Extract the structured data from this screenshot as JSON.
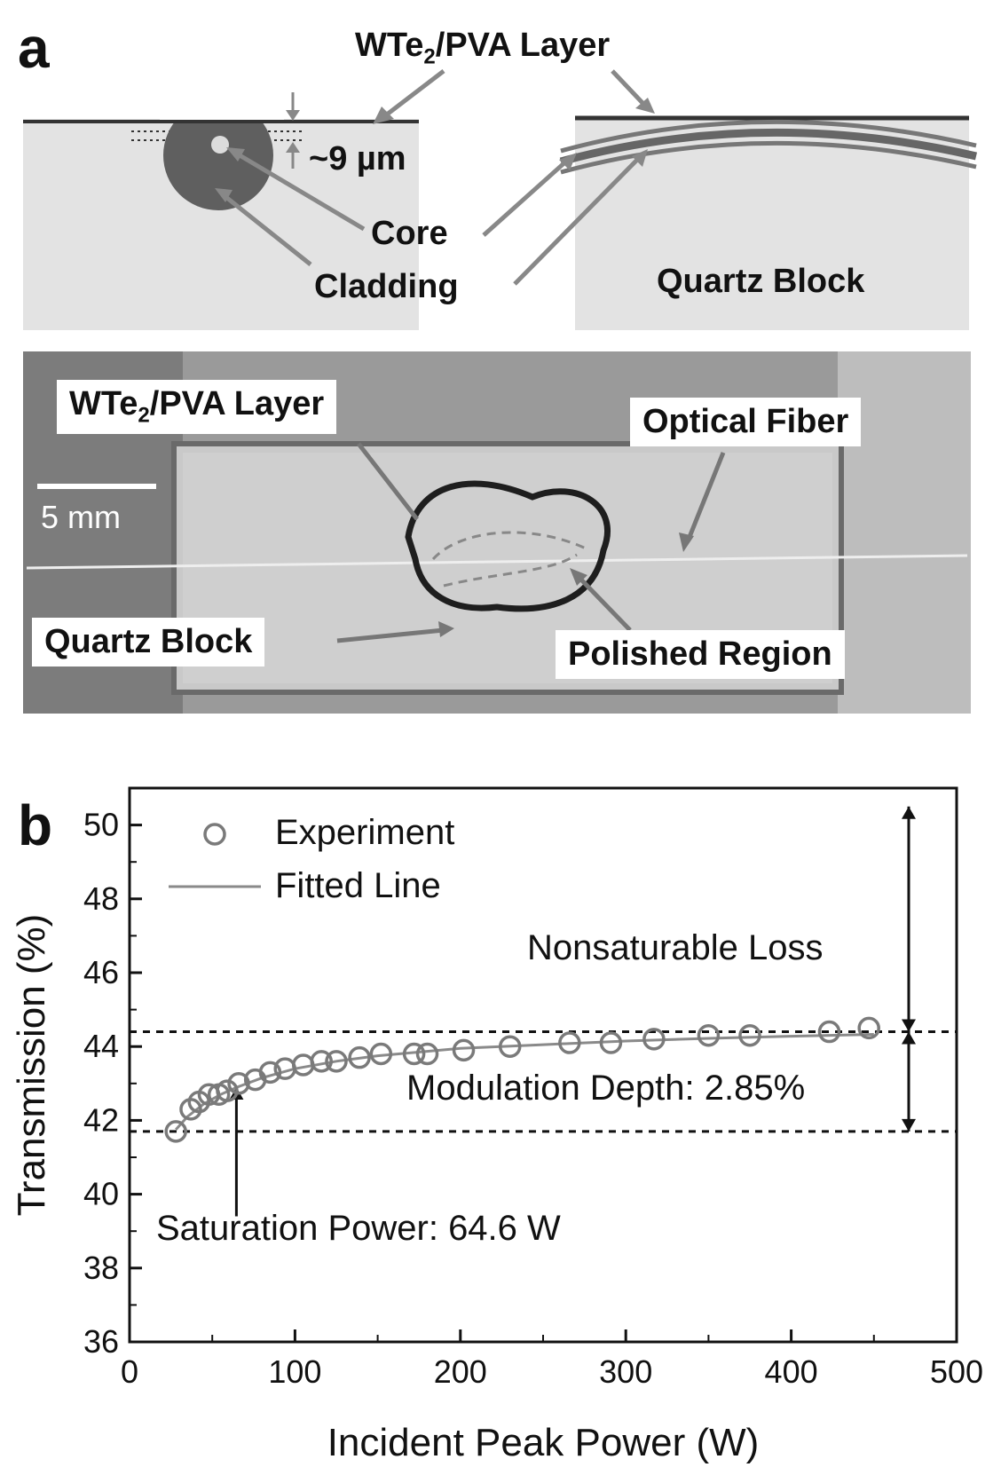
{
  "panel_a": {
    "letter": "a",
    "schematic": {
      "layer_label_prefix": "WTe",
      "layer_label_sub": "2",
      "layer_label_suffix": "/PVA Layer",
      "thickness_label": "~9 µm",
      "core_label": "Core",
      "cladding_label": "Cladding",
      "block_label": "Quartz Block"
    },
    "photo": {
      "layer_label_prefix": "WTe",
      "layer_label_sub": "2",
      "layer_label_suffix": "/PVA Layer",
      "fiber_label": "Optical Fiber",
      "scale_label": "5 mm",
      "block_label": "Quartz Block",
      "region_label": "Polished Region"
    }
  },
  "panel_b": {
    "letter": "b",
    "legend": {
      "experiment": "Experiment",
      "fit": "Fitted Line"
    },
    "annotations": {
      "nonsaturable": "Nonsaturable Loss",
      "modulation": "Modulation Depth: 2.85%",
      "saturation": "Saturation Power: 64.6 W"
    }
  },
  "chart_data": {
    "type": "scatter",
    "xlabel": "Incident Peak Power (W)",
    "ylabel": "Transmission (%)",
    "xlim": [
      0,
      500
    ],
    "ylim": [
      36,
      51
    ],
    "xticks": [
      "0",
      "100",
      "200",
      "300",
      "400",
      "500"
    ],
    "yticks": [
      "36",
      "38",
      "40",
      "42",
      "44",
      "46",
      "48",
      "50"
    ],
    "series": [
      {
        "name": "Experiment",
        "marker": "open-circle",
        "x": [
          28,
          37,
          42,
          48,
          54,
          59,
          66,
          76,
          85,
          94,
          105,
          116,
          125,
          139,
          152,
          172,
          180,
          202,
          230,
          266,
          291,
          317,
          350,
          375,
          423,
          447
        ],
        "y": [
          41.7,
          42.3,
          42.5,
          42.7,
          42.7,
          42.8,
          43.0,
          43.1,
          43.3,
          43.4,
          43.5,
          43.6,
          43.6,
          43.7,
          43.8,
          43.8,
          43.8,
          43.9,
          44.0,
          44.1,
          44.1,
          44.2,
          44.3,
          44.3,
          44.4,
          44.5
        ]
      },
      {
        "name": "Fitted Line",
        "type": "line",
        "x": [
          28,
          35,
          45,
          55,
          65,
          80,
          100,
          125,
          150,
          200,
          250,
          300,
          350,
          400,
          450
        ],
        "y": [
          41.75,
          42.1,
          42.45,
          42.7,
          42.9,
          43.15,
          43.4,
          43.6,
          43.75,
          43.95,
          44.05,
          44.15,
          44.22,
          44.28,
          44.33
        ]
      }
    ],
    "reference_lines": {
      "saturated_transmission": 44.4,
      "initial_transmission": 41.7
    },
    "grid": false,
    "legend_position": "top-left"
  }
}
